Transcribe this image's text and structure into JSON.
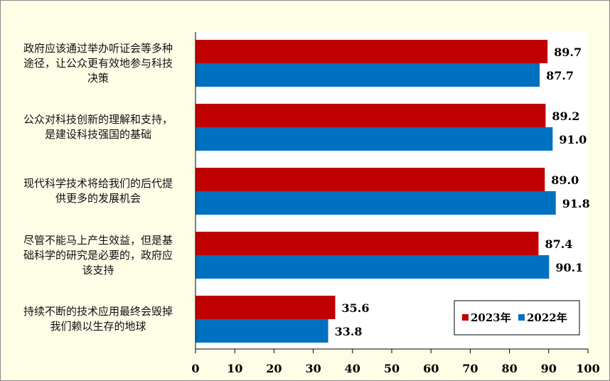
{
  "chart_data": {
    "type": "bar",
    "orientation": "horizontal",
    "categories": [
      "政府应该通过举办听证会等多种途径，让公众更有效地参与科技决策",
      "公众对科技创新的理解和支持，是建设科技强国的基础",
      "现代科学技术将给我们的后代提供更多的发展机会",
      "尽管不能马上产生效益，但是基础科学的研究是必要的，政府应该支持",
      "持续不断的技术应用最终会毁掉我们赖以生存的地球"
    ],
    "category_lines": [
      [
        "政府应该通过举办听证会等多种",
        "途径，让公众更有效地参与科技",
        "决策"
      ],
      [
        "公众对科技创新的理解和支持，",
        "是建设科技强国的基础"
      ],
      [
        "现代科学技术将给我们的后代提",
        "供更多的发展机会"
      ],
      [
        "尽管不能马上产生效益，但是基",
        "础科学的研究是必要的，政府应",
        "该支持"
      ],
      [
        "持续不断的技术应用最终会毁掉",
        "我们赖以生存的地球"
      ]
    ],
    "series": [
      {
        "name": "2023年",
        "color": "#c00000",
        "values": [
          89.7,
          89.2,
          89.0,
          87.4,
          35.6
        ],
        "labels": [
          "89.7",
          "89.2",
          "89.0",
          "87.4",
          "35.6"
        ]
      },
      {
        "name": "2022年",
        "color": "#0070c0",
        "values": [
          87.7,
          91.0,
          91.8,
          90.1,
          33.8
        ],
        "labels": [
          "87.7",
          "91.0",
          "91.8",
          "90.1",
          "33.8"
        ]
      }
    ],
    "xlim": [
      0,
      100
    ],
    "xticks": [
      "0",
      "10",
      "20",
      "30",
      "40",
      "50",
      "60",
      "70",
      "80",
      "90",
      "100"
    ],
    "grid": false,
    "legend_position": "bottom-right",
    "title": "",
    "xlabel": "",
    "ylabel": ""
  }
}
